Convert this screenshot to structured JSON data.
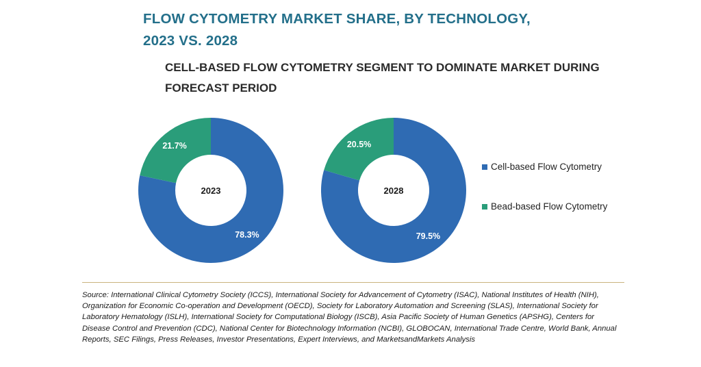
{
  "header": {
    "title_line1": "FLOW CYTOMETRY MARKET SHARE, BY TECHNOLOGY,",
    "title_line2": "2023 VS. 2028",
    "subtitle_line1": "CELL-BASED FLOW CYTOMETRY SEGMENT TO DOMINATE MARKET DURING",
    "subtitle_line2": "FORECAST PERIOD"
  },
  "chart_data": [
    {
      "type": "pie",
      "center_label": "2023",
      "categories": [
        "Cell-based Flow Cytometry",
        "Bead-based Flow Cytometry"
      ],
      "values": [
        78.3,
        21.7
      ],
      "labels": [
        "78.3%",
        "21.7%"
      ],
      "colors": [
        "#2f6bb3",
        "#2a9d7a"
      ]
    },
    {
      "type": "pie",
      "center_label": "2028",
      "categories": [
        "Cell-based Flow Cytometry",
        "Bead-based Flow Cytometry"
      ],
      "values": [
        79.5,
        20.5
      ],
      "labels": [
        "79.5%",
        "20.5%"
      ],
      "colors": [
        "#2f6bb3",
        "#2a9d7a"
      ]
    }
  ],
  "legend": {
    "placement": "right",
    "items": [
      {
        "label": "Cell-based Flow Cytometry",
        "color": "#2f6bb3"
      },
      {
        "label": "Bead-based Flow Cytometry",
        "color": "#2a9d7a"
      }
    ]
  },
  "source": {
    "text": "Source: International Clinical Cytometry Society (ICCS), International Society for Advancement of Cytometry (ISAC), National Institutes of Health (NIH), Organization for Economic Co-operation and Development (OECD), Society for Laboratory Automation and Screening (SLAS), International Society for Laboratory Hematology (ISLH), International Society for Computational Biology (ISCB), Asia Pacific Society of Human Genetics (APSHG), Centers for Disease Control and Prevention (CDC), National Center for Biotechnology Information (NCBI), GLOBOCAN, International Trade Centre, World Bank, Annual Reports, SEC Filings, Press Releases, Investor Presentations, Expert Interviews, and MarketsandMarkets Analysis"
  },
  "colors": {
    "title": "#236f8a",
    "divider": "#c9b37e"
  }
}
